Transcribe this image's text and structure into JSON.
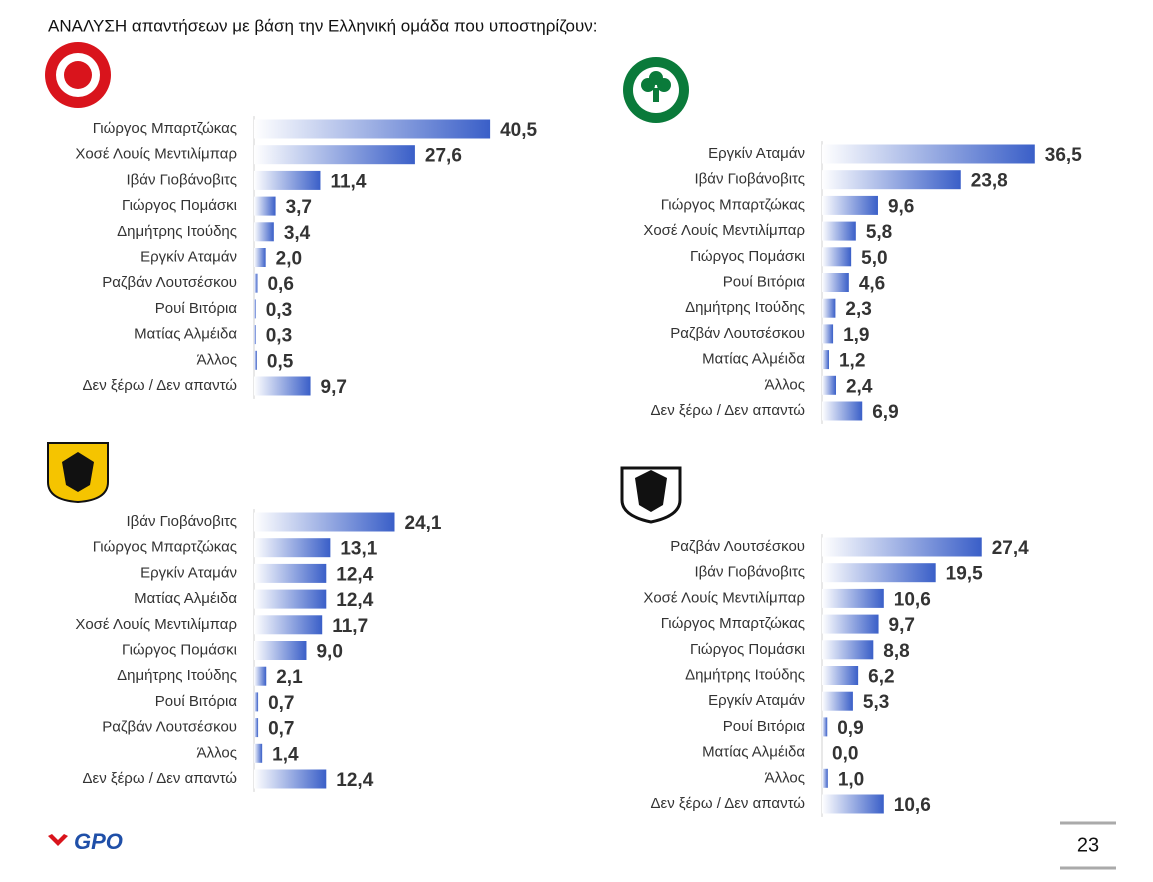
{
  "title": "ΑΝΑΛΥΣΗ απαντήσεων με βάση την Ελληνική ομάδα που υποστηρίζουν:",
  "brand": "GPO",
  "page_number": "23",
  "chart_data": [
    {
      "type": "bar",
      "orientation": "horizontal",
      "color": "#3a5fc8",
      "categories": [
        "Γιώργος Μπαρτζώκας",
        "Χοσέ Λουίς Μεντιλίμπαρ",
        "Ιβάν Γιοβάνοβιτς",
        "Γιώργος Πομάσκι",
        "Δημήτρης Ιτούδης",
        "Εργκίν Αταμάν",
        "Ραζβάν Λουτσέσκου",
        "Ρουί Βιτόρια",
        "Ματίας Αλμέιδα",
        "Άλλος",
        "Δεν ξέρω / Δεν απαντώ"
      ],
      "values": [
        40.5,
        27.6,
        11.4,
        3.7,
        3.4,
        2.0,
        0.6,
        0.3,
        0.3,
        0.5,
        9.7
      ],
      "value_labels": [
        "40,5",
        "27,6",
        "11,4",
        "3,7",
        "3,4",
        "2,0",
        "0,6",
        "0,3",
        "0,3",
        "0,5",
        "9,7"
      ]
    },
    {
      "type": "bar",
      "orientation": "horizontal",
      "color": "#3a5fc8",
      "categories": [
        "Εργκίν Αταμάν",
        "Ιβάν Γιοβάνοβιτς",
        "Γιώργος Μπαρτζώκας",
        "Χοσέ Λουίς Μεντιλίμπαρ",
        "Γιώργος Πομάσκι",
        "Ρουί Βιτόρια",
        "Δημήτρης Ιτούδης",
        "Ραζβάν Λουτσέσκου",
        "Ματίας Αλμέιδα",
        "Άλλος",
        "Δεν ξέρω / Δεν απαντώ"
      ],
      "values": [
        36.5,
        23.8,
        9.6,
        5.8,
        5.0,
        4.6,
        2.3,
        1.9,
        1.2,
        2.4,
        6.9
      ],
      "value_labels": [
        "36,5",
        "23,8",
        "9,6",
        "5,8",
        "5,0",
        "4,6",
        "2,3",
        "1,9",
        "1,2",
        "2,4",
        "6,9"
      ]
    },
    {
      "type": "bar",
      "orientation": "horizontal",
      "color": "#3a5fc8",
      "categories": [
        "Ιβάν Γιοβάνοβιτς",
        "Γιώργος Μπαρτζώκας",
        "Εργκίν Αταμάν",
        "Ματίας Αλμέιδα",
        "Χοσέ Λουίς Μεντιλίμπαρ",
        "Γιώργος Πομάσκι",
        "Δημήτρης Ιτούδης",
        "Ρουί Βιτόρια",
        "Ραζβάν Λουτσέσκου",
        "Άλλος",
        "Δεν ξέρω / Δεν απαντώ"
      ],
      "values": [
        24.1,
        13.1,
        12.4,
        12.4,
        11.7,
        9.0,
        2.1,
        0.7,
        0.7,
        1.4,
        12.4
      ],
      "value_labels": [
        "24,1",
        "13,1",
        "12,4",
        "12,4",
        "11,7",
        "9,0",
        "2,1",
        "0,7",
        "0,7",
        "1,4",
        "12,4"
      ]
    },
    {
      "type": "bar",
      "orientation": "horizontal",
      "color": "#3a5fc8",
      "categories": [
        "Ραζβάν Λουτσέσκου",
        "Ιβάν Γιοβάνοβιτς",
        "Χοσέ Λουίς Μεντιλίμπαρ",
        "Γιώργος Μπαρτζώκας",
        "Γιώργος Πομάσκι",
        "Δημήτρης Ιτούδης",
        "Εργκίν Αταμάν",
        "Ρουί Βιτόρια",
        "Ματίας Αλμέιδα",
        "Άλλος",
        "Δεν ξέρω / Δεν απαντώ"
      ],
      "values": [
        27.4,
        19.5,
        10.6,
        9.7,
        8.8,
        6.2,
        5.3,
        0.9,
        0.0,
        1.0,
        10.6
      ],
      "value_labels": [
        "27,4",
        "19,5",
        "10,6",
        "9,7",
        "8,8",
        "6,2",
        "5,3",
        "0,9",
        "0,0",
        "1,0",
        "10,6"
      ]
    }
  ]
}
